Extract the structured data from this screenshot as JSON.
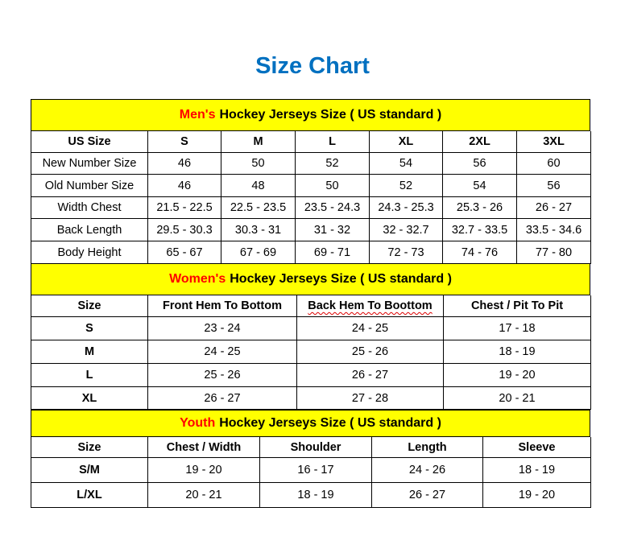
{
  "title": "Size Chart",
  "colors": {
    "title": "#0070C0",
    "band": "#FFFF00",
    "accent": "#FF0000"
  },
  "men": {
    "accent": "Men's",
    "heading": "Hockey Jerseys Size ( US standard )",
    "header": [
      "US Size",
      "S",
      "M",
      "L",
      "XL",
      "2XL",
      "3XL"
    ],
    "rows": [
      [
        "New Number Size",
        "46",
        "50",
        "52",
        "54",
        "56",
        "60"
      ],
      [
        "Old Number Size",
        "46",
        "48",
        "50",
        "52",
        "54",
        "56"
      ],
      [
        "Width Chest",
        "21.5 - 22.5",
        "22.5 - 23.5",
        "23.5 - 24.3",
        "24.3 - 25.3",
        "25.3 - 26",
        "26 - 27"
      ],
      [
        "Back Length",
        "29.5 - 30.3",
        "30.3 - 31",
        "31 - 32",
        "32 - 32.7",
        "32.7 - 33.5",
        "33.5 - 34.6"
      ],
      [
        "Body Height",
        "65 - 67",
        "67 - 69",
        "69 - 71",
        "72 - 73",
        "74 - 76",
        "77 - 80"
      ]
    ]
  },
  "women": {
    "accent": "Women's",
    "heading": "Hockey Jerseys Size ( US standard )",
    "header": [
      "Size",
      "Front Hem To Bottom",
      "Back Hem To Boottom",
      "Chest / Pit To Pit"
    ],
    "rows": [
      [
        "S",
        "23 - 24",
        "24 - 25",
        "17 - 18"
      ],
      [
        "M",
        "24 - 25",
        "25 - 26",
        "18 - 19"
      ],
      [
        "L",
        "25 - 26",
        "26 - 27",
        "19 - 20"
      ],
      [
        "XL",
        "26 - 27",
        "27 - 28",
        "20 - 21"
      ]
    ]
  },
  "youth": {
    "accent": "Youth",
    "heading": "Hockey Jerseys Size ( US standard )",
    "header": [
      "Size",
      "Chest / Width",
      "Shoulder",
      "Length",
      "Sleeve"
    ],
    "rows": [
      [
        "S/M",
        "19 - 20",
        "16 - 17",
        "24 - 26",
        "18 - 19"
      ],
      [
        "L/XL",
        "20 - 21",
        "18 - 19",
        "26 - 27",
        "19 - 20"
      ]
    ]
  }
}
